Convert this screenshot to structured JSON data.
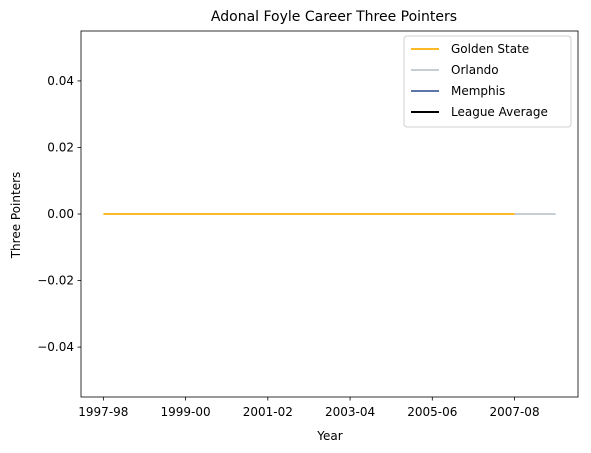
{
  "chart_data": {
    "type": "line",
    "title": "Adonal Foyle Career Three Pointers",
    "xlabel": "Year",
    "ylabel": "Three Pointers",
    "x_categories": [
      "1997-98",
      "1998-99",
      "1999-00",
      "2000-01",
      "2001-02",
      "2002-03",
      "2003-04",
      "2004-05",
      "2005-06",
      "2006-07",
      "2007-08",
      "2008-09"
    ],
    "x_tick_labels": [
      "1997-98",
      "1999-00",
      "2001-02",
      "2003-04",
      "2005-06",
      "2007-08"
    ],
    "y_ticks": [
      -0.04,
      -0.02,
      0.0,
      0.02,
      0.04
    ],
    "y_tick_labels": [
      "−0.04",
      "−0.02",
      "0.00",
      "0.02",
      "0.04"
    ],
    "ylim": [
      -0.055,
      0.055
    ],
    "grid": false,
    "legend_position": "top-right",
    "series": [
      {
        "name": "Golden State",
        "color": "#FDB927",
        "x": [
          "1997-98",
          "1998-99",
          "1999-00",
          "2000-01",
          "2001-02",
          "2002-03",
          "2003-04",
          "2004-05",
          "2005-06",
          "2006-07",
          "2007-08"
        ],
        "values": [
          0,
          0,
          0,
          0,
          0,
          0,
          0,
          0,
          0,
          0,
          0
        ]
      },
      {
        "name": "Orlando",
        "color": "#C4CED4",
        "x": [
          "2007-08",
          "2008-09"
        ],
        "values": [
          0,
          0
        ]
      },
      {
        "name": "Memphis",
        "color": "#5D76A9",
        "x": [],
        "values": []
      },
      {
        "name": "League Average",
        "color": "#000000",
        "x": [],
        "values": []
      }
    ]
  }
}
